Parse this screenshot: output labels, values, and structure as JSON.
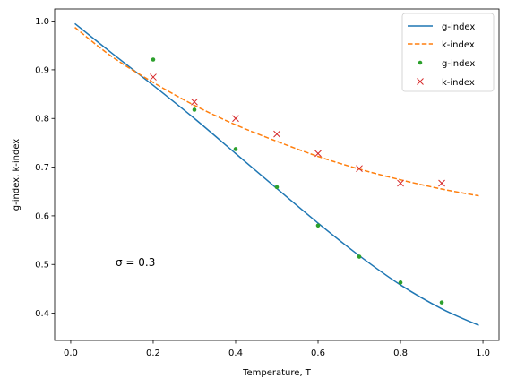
{
  "chart_data": {
    "type": "line",
    "xlabel": "Temperature, T",
    "ylabel": "g-index, k-index",
    "xlim": [
      -0.039,
      1.039
    ],
    "ylim": [
      0.344,
      1.025
    ],
    "x_ticks": [
      0.0,
      0.2,
      0.4,
      0.6,
      0.8,
      1.0
    ],
    "x_tick_labels": [
      "0.0",
      "0.2",
      "0.4",
      "0.6",
      "0.8",
      "1.0"
    ],
    "y_ticks": [
      0.4,
      0.5,
      0.6,
      0.7,
      0.8,
      0.9,
      1.0
    ],
    "y_tick_labels": [
      "0.4",
      "0.5",
      "0.6",
      "0.7",
      "0.8",
      "0.9",
      "1.0"
    ],
    "grid": false,
    "legend_position": "top-right",
    "annotation": "σ = 0.3",
    "series": [
      {
        "name": "g-index",
        "kind": "line",
        "style": "solid",
        "color": "#1f77b4",
        "x": [
          0.01,
          0.1,
          0.2,
          0.3,
          0.4,
          0.5,
          0.6,
          0.7,
          0.8,
          0.9,
          0.99
        ],
        "y": [
          0.995,
          0.934,
          0.868,
          0.8,
          0.728,
          0.656,
          0.585,
          0.518,
          0.458,
          0.409,
          0.375
        ]
      },
      {
        "name": "k-index",
        "kind": "line",
        "style": "dashed",
        "color": "#ff7f0e",
        "x": [
          0.01,
          0.1,
          0.2,
          0.3,
          0.4,
          0.5,
          0.6,
          0.7,
          0.8,
          0.9,
          0.99
        ],
        "y": [
          0.987,
          0.927,
          0.874,
          0.827,
          0.787,
          0.753,
          0.722,
          0.696,
          0.674,
          0.655,
          0.641
        ]
      },
      {
        "name": "g-index",
        "kind": "points",
        "marker": "dot",
        "color": "#2ca02c",
        "x": [
          0.2,
          0.3,
          0.4,
          0.5,
          0.6,
          0.7,
          0.8,
          0.9
        ],
        "y": [
          0.921,
          0.818,
          0.737,
          0.659,
          0.58,
          0.516,
          0.463,
          0.422
        ]
      },
      {
        "name": "k-index",
        "kind": "points",
        "marker": "x",
        "color": "#d62728",
        "x": [
          0.2,
          0.3,
          0.4,
          0.5,
          0.6,
          0.7,
          0.8,
          0.9
        ],
        "y": [
          0.885,
          0.834,
          0.8,
          0.768,
          0.728,
          0.697,
          0.667,
          0.667
        ]
      }
    ]
  }
}
